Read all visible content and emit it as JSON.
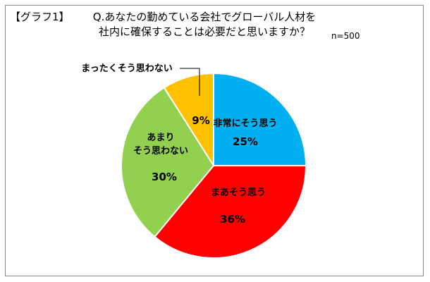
{
  "chart_data": {
    "type": "pie",
    "label": "【グラフ1】",
    "title": "Q.あなたの勤めている会社でグローバル人材を\n社内に確保することは必要だと思いますか？",
    "note": "n=500",
    "categories": [
      "非常にそう思う",
      "まあそう思う",
      "あまり\nそう思わない",
      "まったくそう思わない"
    ],
    "values": [
      25,
      36,
      30,
      9
    ],
    "value_labels": [
      "25%",
      "36%",
      "30%",
      "9%"
    ],
    "colors": [
      "#00b0f0",
      "#ff0000",
      "#92d050",
      "#ffc000"
    ]
  }
}
